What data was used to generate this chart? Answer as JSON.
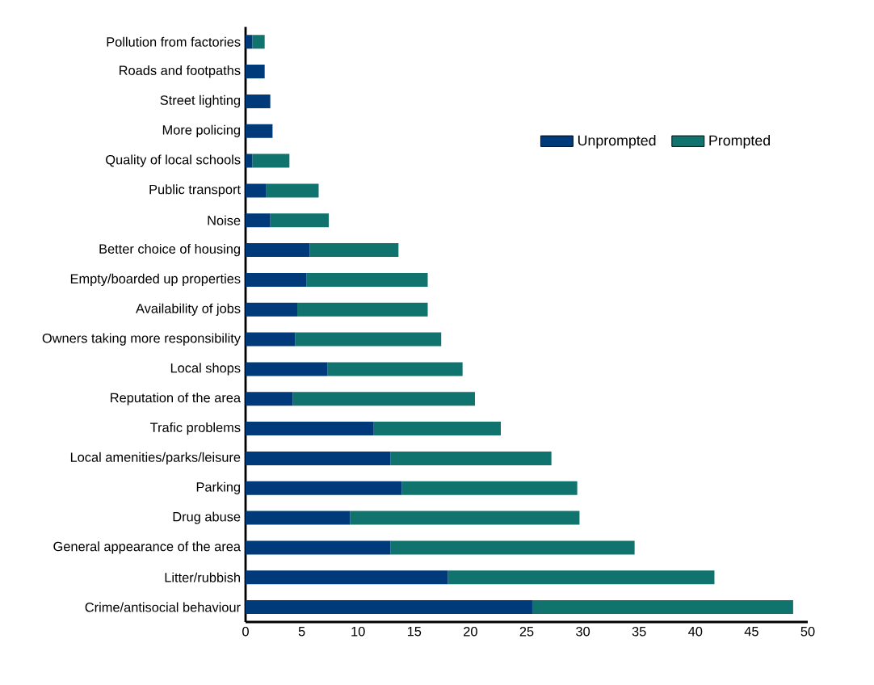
{
  "chart_data": {
    "type": "bar",
    "orientation": "horizontal",
    "stacked": true,
    "categories": [
      "Pollution from factories",
      "Roads and footpaths",
      "Street lighting",
      "More policing",
      "Quality of local schools",
      "Public transport",
      "Noise",
      "Better choice of housing",
      "Empty/boarded up properties",
      "Availability of jobs",
      "Owners taking more responsibility",
      "Local shops",
      "Reputation of the area",
      "Trafic problems",
      "Local amenities/parks/leisure",
      "Parking",
      "Drug abuse",
      "General appearance of the area",
      "Litter/rubbish",
      "Crime/antisocial behaviour"
    ],
    "series": [
      {
        "name": "Unprompted",
        "color": "#003a7a",
        "values": [
          0.6,
          1.7,
          2.2,
          2.4,
          0.6,
          1.8,
          2.2,
          5.7,
          5.4,
          4.6,
          4.4,
          7.3,
          4.2,
          11.4,
          12.9,
          13.9,
          9.3,
          12.9,
          18.0,
          25.5
        ]
      },
      {
        "name": "Prompted",
        "color": "#10736e",
        "values": [
          1.1,
          null,
          null,
          null,
          3.3,
          4.7,
          5.2,
          7.9,
          10.8,
          11.6,
          13.0,
          12.0,
          16.2,
          11.3,
          14.3,
          15.6,
          20.4,
          21.7,
          23.7,
          23.2
        ]
      }
    ],
    "xlim": [
      0,
      50
    ],
    "xticks": [
      0,
      5,
      10,
      15,
      20,
      25,
      30,
      35,
      40,
      45,
      50
    ],
    "legend": "top right"
  }
}
